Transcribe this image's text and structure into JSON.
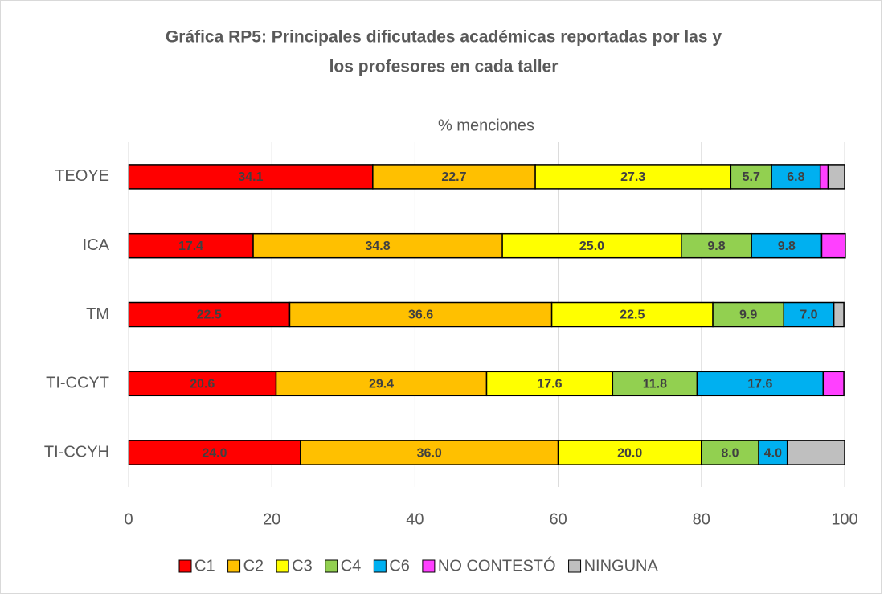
{
  "chart_data": {
    "type": "stacked-bar-horizontal",
    "title": [
      "Gráfica RP5: Principales dificutades académicas reportadas por las y",
      "los profesores en cada taller"
    ],
    "xlabel": "% menciones",
    "categories": [
      "TEOYE",
      "ICA",
      "TM",
      "TI-CCYT",
      "TI-CCYH"
    ],
    "series": [
      {
        "name": "C1",
        "color": "#ff0000",
        "values": [
          34.1,
          17.4,
          22.5,
          20.6,
          24.0
        ],
        "value_labels": [
          "34.1",
          "17.4",
          "22.5",
          "20.6",
          "24.0"
        ]
      },
      {
        "name": "C2",
        "color": "#ffc000",
        "values": [
          22.7,
          34.8,
          36.6,
          29.4,
          36.0
        ],
        "value_labels": [
          "22.7",
          "34.8",
          "36.6",
          "29.4",
          "36.0"
        ]
      },
      {
        "name": "C3",
        "color": "#ffff00",
        "values": [
          27.3,
          25.0,
          22.5,
          17.6,
          20.0
        ],
        "value_labels": [
          "27.3",
          "25.0",
          "22.5",
          "17.6",
          "20.0"
        ]
      },
      {
        "name": "C4",
        "color": "#92d050",
        "values": [
          5.7,
          9.8,
          9.9,
          11.8,
          8.0
        ],
        "value_labels": [
          "5.7",
          "9.8",
          "9.9",
          "11.8",
          "8.0"
        ]
      },
      {
        "name": "C6",
        "color": "#00b0f0",
        "values": [
          6.8,
          9.8,
          7.0,
          17.6,
          4.0
        ],
        "value_labels": [
          "6.8",
          "9.8",
          "7.0",
          "17.6",
          "4.0"
        ]
      },
      {
        "name": "NO CONTESTÓ",
        "color": "#ff40ff",
        "values": [
          1.1,
          3.3,
          0,
          2.9,
          0
        ]
      },
      {
        "name": "NINGUNA",
        "color": "#bfbfbf",
        "values": [
          2.3,
          0,
          1.4,
          0,
          8.0
        ]
      }
    ],
    "xlim": [
      0,
      100
    ],
    "xticks": [
      0,
      20,
      40,
      60,
      80,
      100
    ],
    "grid": true,
    "legend": "bottom"
  }
}
